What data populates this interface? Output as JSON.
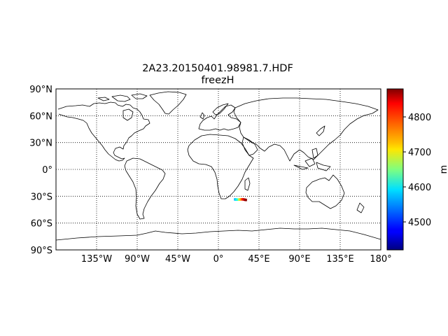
{
  "title": "2A23.20150401.98981.7.HDF",
  "subtitle": "freezH",
  "chart_data": {
    "type": "map",
    "projection": "equirectangular",
    "title": "2A23.20150401.98981.7.HDF",
    "subtitle": "freezH",
    "lon_range": [
      -180,
      180
    ],
    "lat_range": [
      -90,
      90
    ],
    "grid": "dotted",
    "x_ticks": [
      {
        "value": -135,
        "label": "135°W"
      },
      {
        "value": -90,
        "label": "90°W"
      },
      {
        "value": -45,
        "label": "45°W"
      },
      {
        "value": 0,
        "label": "0°"
      },
      {
        "value": 45,
        "label": "45°E"
      },
      {
        "value": 90,
        "label": "90°E"
      },
      {
        "value": 135,
        "label": "135°E"
      },
      {
        "value": 180,
        "label": "180°"
      }
    ],
    "y_ticks": [
      {
        "value": 90,
        "label": "90°N"
      },
      {
        "value": 60,
        "label": "60°N"
      },
      {
        "value": 30,
        "label": "30°N"
      },
      {
        "value": 0,
        "label": "0°"
      },
      {
        "value": -30,
        "label": "30°S"
      },
      {
        "value": -60,
        "label": "60°S"
      },
      {
        "value": -90,
        "label": "90°S"
      }
    ],
    "colorbar": {
      "label": "m",
      "colormap": "jet",
      "vmin": 4420,
      "vmax": 4880,
      "ticks": [
        4500,
        4600,
        4700,
        4800
      ]
    },
    "swath_points": [
      {
        "lon": 18.5,
        "lat": -33.4,
        "value": 4560
      },
      {
        "lon": 20.0,
        "lat": -33.6,
        "value": 4590
      },
      {
        "lon": 21.5,
        "lat": -33.6,
        "value": 4620
      },
      {
        "lon": 23.0,
        "lat": -33.5,
        "value": 4680
      },
      {
        "lon": 24.5,
        "lat": -33.4,
        "value": 4740
      },
      {
        "lon": 26.0,
        "lat": -33.3,
        "value": 4790
      },
      {
        "lon": 27.5,
        "lat": -33.4,
        "value": 4830
      },
      {
        "lon": 29.0,
        "lat": -33.7,
        "value": 4860
      },
      {
        "lon": 30.3,
        "lat": -34.0,
        "value": 4875
      }
    ]
  }
}
